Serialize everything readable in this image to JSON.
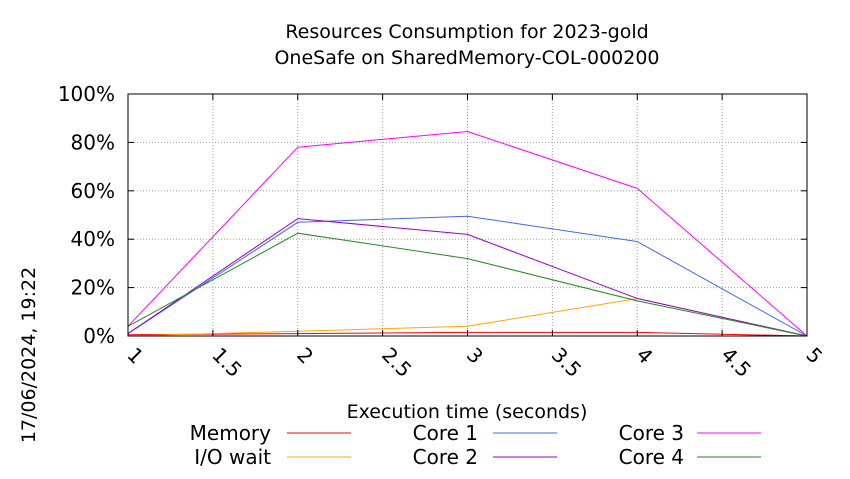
{
  "timestamp": "17/06/2024, 19:22",
  "chart_data": {
    "type": "line",
    "title": [
      "Resources Consumption for 2023-gold",
      "OneSafe on SharedMemory-COL-000200"
    ],
    "xlabel": "Execution time (seconds)",
    "ylabel": "",
    "xlim": [
      1,
      5
    ],
    "ylim": [
      0,
      100
    ],
    "x_ticks": [
      "1",
      "1.5",
      "2",
      "2.5",
      "3",
      "3.5",
      "4",
      "4.5",
      "5"
    ],
    "y_ticks": [
      "0%",
      "20%",
      "40%",
      "60%",
      "80%",
      "100%"
    ],
    "grid": true,
    "legend_position": "bottom",
    "x": [
      1,
      2,
      3,
      4,
      5
    ],
    "series": [
      {
        "name": "Memory",
        "color": "#ff0000",
        "values": [
          0.5,
          1,
          1.5,
          1.5,
          0
        ]
      },
      {
        "name": "I/O wait",
        "color": "#ffa500",
        "values": [
          0,
          2,
          4,
          15.5,
          0
        ]
      },
      {
        "name": "Core 1",
        "color": "#4169e1",
        "values": [
          1,
          47,
          49.5,
          39,
          0
        ]
      },
      {
        "name": "Core 2",
        "color": "#9400d3",
        "values": [
          1,
          48.5,
          42,
          15.5,
          0
        ]
      },
      {
        "name": "Core 3",
        "color": "#ff00ff",
        "values": [
          4,
          78,
          84.5,
          61,
          0
        ]
      },
      {
        "name": "Core 4",
        "color": "#228b22",
        "values": [
          4,
          42.5,
          32,
          14.5,
          0
        ]
      }
    ]
  }
}
